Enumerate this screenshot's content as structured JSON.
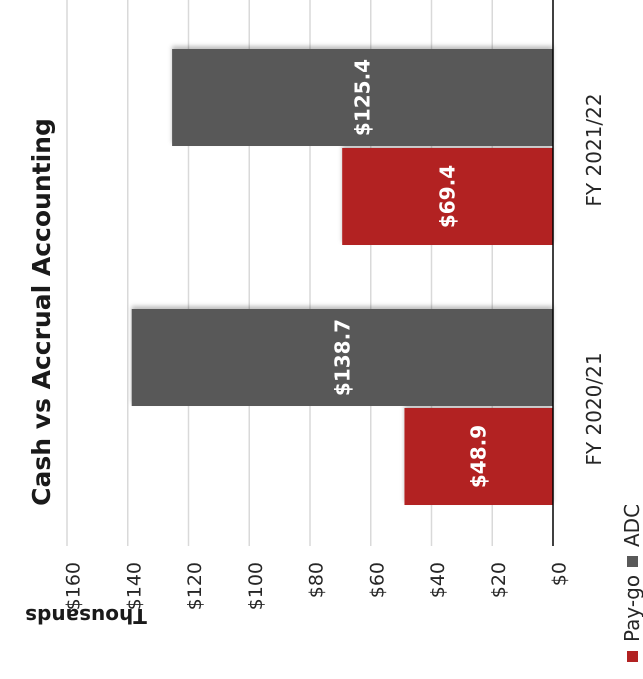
{
  "chart_data": {
    "type": "bar",
    "orientation": "vertical-rotated",
    "title": "Cash vs Accrual Accounting",
    "ylabel": "Thousands",
    "xlabel": "",
    "categories": [
      "FY 2020/21",
      "FY 2021/22"
    ],
    "series": [
      {
        "name": "Pay-go",
        "color": "#b22222",
        "values": [
          48.9,
          69.4
        ],
        "labels": [
          "$48.9",
          "$69.4"
        ]
      },
      {
        "name": "ADC",
        "color": "#595959",
        "values": [
          138.7,
          125.4
        ],
        "labels": [
          "$138.7",
          "$125.4"
        ]
      }
    ],
    "ylim": [
      0,
      160
    ],
    "yticks": [
      0,
      20,
      40,
      60,
      80,
      100,
      120,
      140,
      160
    ],
    "ytick_labels": [
      "$0",
      "$20",
      "$40",
      "$60",
      "$80",
      "$100",
      "$120",
      "$140",
      "$160"
    ],
    "grid": true,
    "legend_position": "bottom"
  }
}
